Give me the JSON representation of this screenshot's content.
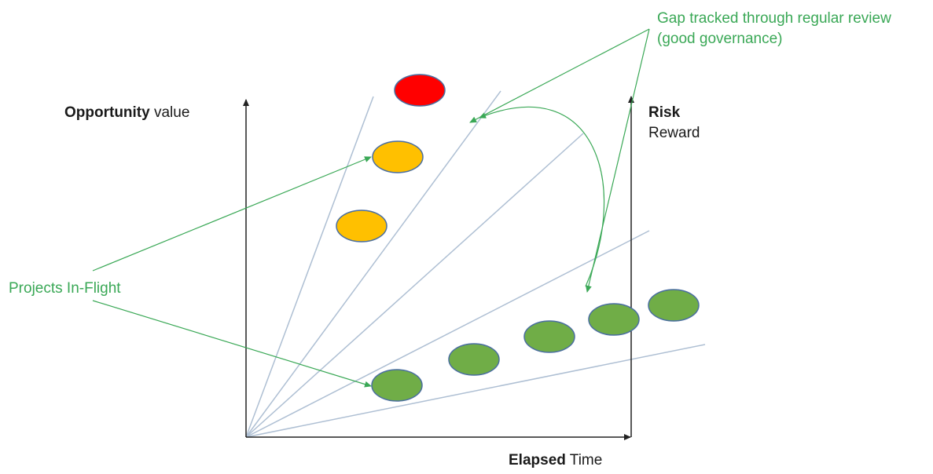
{
  "axes": {
    "y_left": {
      "bold": "Opportunity",
      "rest": " value"
    },
    "y_right": {
      "line1": "Risk",
      "line2": "Reward"
    },
    "x": {
      "bold": "Elapsed",
      "rest": " Time"
    }
  },
  "annotations": {
    "gap_line1": "Gap tracked through regular review",
    "gap_line2": "(good governance)",
    "projects": "Projects In-Flight"
  },
  "colors": {
    "red": "#ff0000",
    "amber": "#ffc000",
    "green": "#70ad47",
    "annotation": "#3aa856",
    "ray": "#aebfd3",
    "axis": "#222222",
    "bubble_stroke": "#4a6ea0"
  },
  "bubbles": [
    {
      "status": "red",
      "color": "#ff0000"
    },
    {
      "status": "amber",
      "color": "#ffc000"
    },
    {
      "status": "amber",
      "color": "#ffc000"
    },
    {
      "status": "green",
      "color": "#70ad47"
    },
    {
      "status": "green",
      "color": "#70ad47"
    },
    {
      "status": "green",
      "color": "#70ad47"
    },
    {
      "status": "green",
      "color": "#70ad47"
    },
    {
      "status": "green",
      "color": "#70ad47"
    }
  ]
}
